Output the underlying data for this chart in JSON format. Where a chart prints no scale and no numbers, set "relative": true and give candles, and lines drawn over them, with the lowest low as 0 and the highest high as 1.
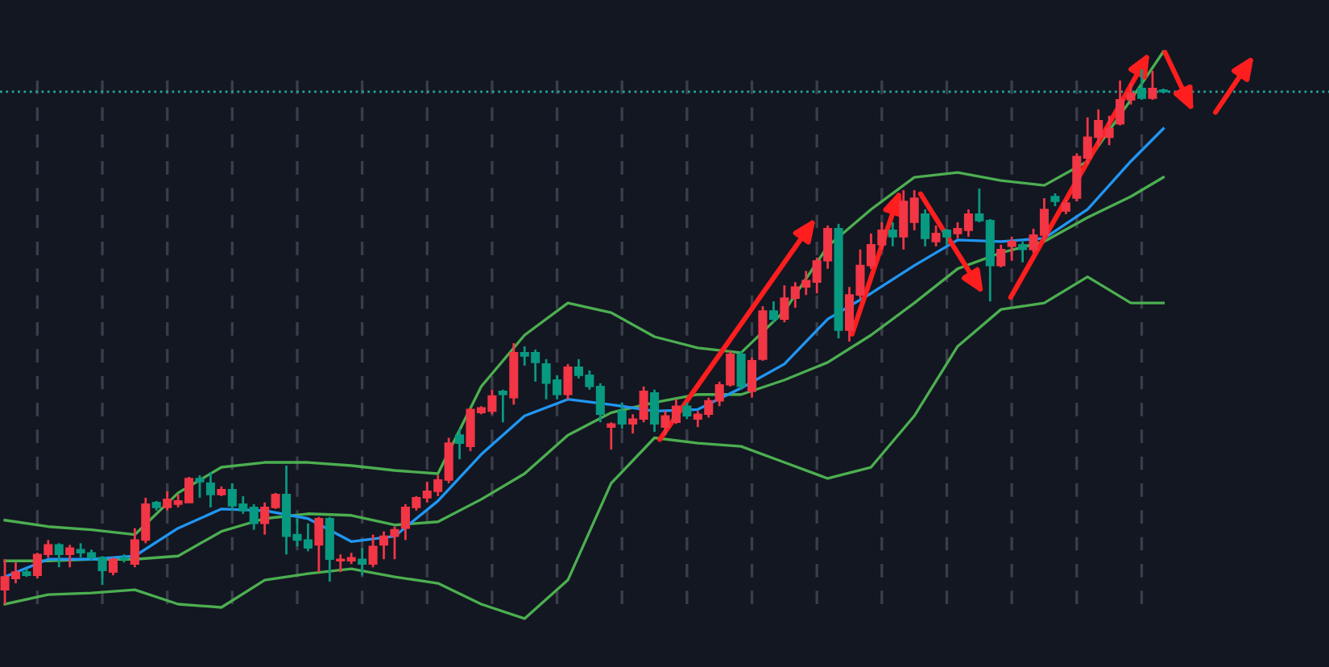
{
  "chart_data": {
    "type": "candlestick",
    "relative": true,
    "grid": "x",
    "categories": [
      null,
      null,
      null,
      null,
      null,
      null,
      null,
      null,
      null,
      null,
      null,
      null,
      null,
      null,
      null,
      null,
      null,
      null,
      null,
      null,
      null,
      null,
      null,
      null,
      null,
      null,
      null,
      null,
      null,
      null,
      null,
      null,
      null,
      null,
      null,
      null,
      null,
      null,
      null,
      null,
      null,
      null,
      null,
      null,
      null,
      null,
      null,
      null,
      null,
      null,
      null,
      null,
      null,
      null,
      null,
      null,
      null,
      null,
      null,
      null,
      null,
      null,
      null,
      null,
      null,
      null,
      null,
      null,
      null,
      null,
      null,
      null,
      null,
      null,
      null,
      null,
      null,
      null,
      null,
      null,
      null,
      null,
      null,
      null,
      null,
      null,
      null,
      null,
      null,
      null,
      null,
      null,
      null,
      null,
      null,
      null,
      null,
      null,
      null,
      null,
      null,
      null,
      null,
      null,
      null,
      null,
      null,
      null
    ],
    "ohlc": [
      [
        0.027,
        0.084,
        0,
        0.051
      ],
      [
        0.048,
        0.078,
        0.039,
        0.06
      ],
      [
        0.06,
        0.066,
        0.051,
        0.054
      ],
      [
        0.054,
        0.096,
        0.048,
        0.093
      ],
      [
        0.093,
        0.12,
        0.087,
        0.111
      ],
      [
        0.111,
        0.114,
        0.069,
        0.093
      ],
      [
        0.093,
        0.111,
        0.069,
        0.105
      ],
      [
        0.102,
        0.114,
        0.087,
        0.096
      ],
      [
        0.096,
        0.102,
        0.081,
        0.087
      ],
      [
        0.087,
        0.09,
        0.036,
        0.063
      ],
      [
        0.06,
        0.087,
        0.054,
        0.084
      ],
      [
        0.087,
        0.093,
        0.078,
        0.084
      ],
      [
        0.075,
        0.142,
        0.069,
        0.12
      ],
      [
        0.12,
        0.199,
        0.114,
        0.187
      ],
      [
        0.19,
        0.193,
        0.175,
        0.181
      ],
      [
        0.181,
        0.211,
        0.175,
        0.196
      ],
      [
        0.187,
        0.205,
        0.181,
        0.193
      ],
      [
        0.19,
        0.238,
        0.19,
        0.235
      ],
      [
        0.235,
        0.241,
        0.199,
        0.229
      ],
      [
        0.226,
        0.247,
        0.181,
        0.205
      ],
      [
        0.205,
        0.22,
        0.202,
        0.214
      ],
      [
        0.214,
        0.226,
        0.175,
        0.184
      ],
      [
        0.187,
        0.202,
        0.169,
        0.175
      ],
      [
        0.181,
        0.187,
        0.139,
        0.151
      ],
      [
        0.151,
        0.19,
        0.13,
        0.181
      ],
      [
        0.181,
        0.208,
        0.178,
        0.205
      ],
      [
        0.205,
        0.259,
        0.093,
        0.127
      ],
      [
        0.13,
        0.16,
        0.108,
        0.12
      ],
      [
        0.12,
        0.151,
        0.099,
        0.105
      ],
      [
        0.111,
        0.163,
        0.06,
        0.16
      ],
      [
        0.16,
        0.163,
        0.042,
        0.084
      ],
      [
        0.081,
        0.093,
        0.06,
        0.084
      ],
      [
        0.081,
        0.096,
        0.075,
        0.087
      ],
      [
        0.084,
        0.105,
        0.054,
        0.075
      ],
      [
        0.075,
        0.13,
        0.069,
        0.108
      ],
      [
        0.111,
        0.136,
        0.084,
        0.127
      ],
      [
        0.127,
        0.145,
        0.084,
        0.139
      ],
      [
        0.142,
        0.187,
        0.12,
        0.181
      ],
      [
        0.181,
        0.202,
        0.175,
        0.199
      ],
      [
        0.199,
        0.229,
        0.19,
        0.211
      ],
      [
        0.211,
        0.241,
        0.202,
        0.232
      ],
      [
        0.232,
        0.311,
        0.226,
        0.301
      ],
      [
        0.316,
        0.328,
        0.271,
        0.301
      ],
      [
        0.295,
        0.367,
        0.286,
        0.364
      ],
      [
        0.358,
        0.37,
        0.355,
        0.367
      ],
      [
        0.361,
        0.401,
        0.355,
        0.389
      ],
      [
        0.398,
        0.401,
        0.34,
        0.392
      ],
      [
        0.386,
        0.488,
        0.373,
        0.47
      ],
      [
        0.47,
        0.482,
        0.446,
        0.464
      ],
      [
        0.47,
        0.476,
        0.416,
        0.452
      ],
      [
        0.449,
        0.458,
        0.383,
        0.413
      ],
      [
        0.419,
        0.428,
        0.383,
        0.392
      ],
      [
        0.392,
        0.449,
        0.383,
        0.443
      ],
      [
        0.443,
        0.458,
        0.422,
        0.428
      ],
      [
        0.428,
        0.437,
        0.401,
        0.407
      ],
      [
        0.407,
        0.413,
        0.34,
        0.355
      ],
      [
        0.331,
        0.34,
        0.289,
        0.337
      ],
      [
        0.361,
        0.377,
        0.328,
        0.337
      ],
      [
        0.337,
        0.355,
        0.319,
        0.346
      ],
      [
        0.346,
        0.407,
        0.34,
        0.398
      ],
      [
        0.395,
        0.401,
        0.322,
        0.337
      ],
      [
        0.331,
        0.361,
        0.316,
        0.352
      ],
      [
        0.34,
        0.383,
        0.337,
        0.37
      ],
      [
        0.37,
        0.377,
        0.346,
        0.352
      ],
      [
        0.346,
        0.361,
        0.331,
        0.355
      ],
      [
        0.355,
        0.386,
        0.349,
        0.38
      ],
      [
        0.38,
        0.416,
        0.37,
        0.41
      ],
      [
        0.41,
        0.473,
        0.407,
        0.467
      ],
      [
        0.467,
        0.473,
        0.401,
        0.407
      ],
      [
        0.398,
        0.461,
        0.386,
        0.455
      ],
      [
        0.458,
        0.557,
        0.455,
        0.548
      ],
      [
        0.548,
        0.566,
        0.527,
        0.533
      ],
      [
        0.533,
        0.596,
        0.527,
        0.572
      ],
      [
        0.572,
        0.602,
        0.554,
        0.593
      ],
      [
        0.593,
        0.623,
        0.578,
        0.605
      ],
      [
        0.602,
        0.648,
        0.581,
        0.642
      ],
      [
        0.642,
        0.708,
        0.627,
        0.702
      ],
      [
        0.702,
        0.711,
        0.497,
        0.512
      ],
      [
        0.512,
        0.593,
        0.491,
        0.578
      ],
      [
        0.578,
        0.663,
        0.572,
        0.633
      ],
      [
        0.633,
        0.693,
        0.627,
        0.672
      ],
      [
        0.672,
        0.714,
        0.663,
        0.699
      ],
      [
        0.699,
        0.714,
        0.669,
        0.687
      ],
      [
        0.687,
        0.774,
        0.663,
        0.753
      ],
      [
        0.714,
        0.774,
        0.699,
        0.759
      ],
      [
        0.729,
        0.738,
        0.669,
        0.684
      ],
      [
        0.678,
        0.708,
        0.669,
        0.693
      ],
      [
        0.699,
        0.702,
        0.672,
        0.687
      ],
      [
        0.693,
        0.714,
        0.684,
        0.702
      ],
      [
        0.699,
        0.738,
        0.687,
        0.729
      ],
      [
        0.729,
        0.777,
        0.714,
        0.717
      ],
      [
        0.717,
        0.72,
        0.566,
        0.633
      ],
      [
        0.633,
        0.672,
        0.63,
        0.663
      ],
      [
        0.669,
        0.687,
        0.642,
        0.678
      ],
      [
        0.672,
        0.678,
        0.639,
        0.663
      ],
      [
        0.663,
        0.702,
        0.657,
        0.69
      ],
      [
        0.69,
        0.759,
        0.678,
        0.738
      ],
      [
        0.762,
        0.768,
        0.744,
        0.753
      ],
      [
        0.735,
        0.756,
        0.729,
        0.75
      ],
      [
        0.759,
        0.843,
        0.753,
        0.837
      ],
      [
        0.834,
        0.91,
        0.822,
        0.873
      ],
      [
        0.873,
        0.925,
        0.858,
        0.904
      ],
      [
        0.873,
        0.913,
        0.858,
        0.889
      ],
      [
        0.898,
        0.979,
        0.895,
        0.943
      ],
      [
        0.943,
        0.973,
        0.934,
        0.955
      ],
      [
        0.964,
        1,
        0.943,
        0.946
      ],
      [
        0.946,
        0.997,
        0.943,
        0.964
      ],
      [
        0.961,
        0.964,
        0.955,
        0.958
      ]
    ],
    "series": [
      {
        "type": "line",
        "color": "#4caf50",
        "values": [
          0.157,
          null,
          null,
          null,
          0.145,
          null,
          null,
          null,
          0.139,
          null,
          null,
          null,
          0.13,
          null,
          null,
          null,
          0.208,
          null,
          null,
          null,
          0.256,
          null,
          null,
          null,
          0.265,
          null,
          null,
          null,
          0.265,
          null,
          null,
          null,
          0.259,
          null,
          null,
          null,
          0.25,
          null,
          null,
          null,
          0.244,
          null,
          null,
          null,
          0.407,
          null,
          null,
          null,
          0.503,
          null,
          null,
          null,
          0.563,
          null,
          null,
          null,
          0.545,
          null,
          null,
          null,
          0.5,
          null,
          null,
          null,
          0.479,
          null,
          null,
          null,
          0.47,
          null,
          null,
          null,
          0.548,
          null,
          null,
          null,
          0.669,
          null,
          null,
          null,
          0.738,
          null,
          null,
          null,
          0.798,
          null,
          null,
          null,
          0.807,
          null,
          null,
          null,
          0.792,
          null,
          null,
          null,
          0.783,
          null,
          null,
          null,
          0.828,
          null,
          null,
          null,
          0.943,
          null,
          null,
          1.033
        ]
      },
      {
        "type": "line",
        "color": "#4caf50",
        "values": [
          0.081,
          null,
          null,
          null,
          0.081,
          null,
          null,
          null,
          0.084,
          null,
          null,
          null,
          0.084,
          null,
          null,
          null,
          0.09,
          null,
          null,
          null,
          0.136,
          null,
          null,
          null,
          0.16,
          null,
          null,
          null,
          0.169,
          null,
          null,
          null,
          0.166,
          null,
          null,
          null,
          0.148,
          null,
          null,
          null,
          0.154,
          null,
          null,
          null,
          0.196,
          null,
          null,
          null,
          0.244,
          null,
          null,
          null,
          0.316,
          null,
          null,
          null,
          0.358,
          null,
          null,
          null,
          0.377,
          null,
          null,
          null,
          0.392,
          null,
          null,
          null,
          0.392,
          null,
          null,
          null,
          0.419,
          null,
          null,
          null,
          0.452,
          null,
          null,
          null,
          0.503,
          null,
          null,
          null,
          0.563,
          null,
          null,
          null,
          0.627,
          null,
          null,
          null,
          0.657,
          null,
          null,
          null,
          0.678,
          null,
          null,
          null,
          0.723,
          null,
          null,
          null,
          0.762,
          null,
          null,
          0.798
        ]
      },
      {
        "type": "line",
        "color": "#2196f3",
        "values": [
          0.051,
          null,
          null,
          null,
          0.084,
          null,
          null,
          null,
          0.084,
          null,
          null,
          null,
          0.09,
          null,
          null,
          null,
          0.142,
          null,
          null,
          null,
          0.178,
          null,
          null,
          null,
          0.175,
          null,
          null,
          null,
          0.16,
          null,
          null,
          null,
          0.117,
          null,
          null,
          null,
          0.127,
          null,
          null,
          null,
          0.193,
          null,
          null,
          null,
          0.28,
          null,
          null,
          null,
          0.352,
          null,
          null,
          null,
          0.383,
          null,
          null,
          null,
          0.373,
          null,
          null,
          null,
          0.361,
          null,
          null,
          null,
          0.364,
          null,
          null,
          null,
          0.404,
          null,
          null,
          null,
          0.449,
          null,
          null,
          null,
          0.533,
          null,
          null,
          null,
          0.581,
          null,
          null,
          null,
          0.633,
          null,
          null,
          null,
          0.681,
          null,
          null,
          null,
          0.678,
          null,
          null,
          null,
          0.684,
          null,
          null,
          null,
          0.738,
          null,
          null,
          null,
          0.828,
          null,
          null,
          0.889
        ]
      },
      {
        "type": "line",
        "color": "#4caf50",
        "values": [
          0,
          null,
          null,
          null,
          0.018,
          null,
          null,
          null,
          0.021,
          null,
          null,
          null,
          0.027,
          null,
          null,
          null,
          0,
          null,
          null,
          null,
          -0.006,
          null,
          null,
          null,
          0.045,
          null,
          null,
          null,
          0.057,
          null,
          null,
          null,
          0.066,
          null,
          null,
          null,
          0.051,
          null,
          null,
          null,
          0.039,
          null,
          null,
          null,
          0,
          null,
          null,
          null,
          -0.027,
          null,
          null,
          null,
          0.045,
          null,
          null,
          null,
          0.226,
          null,
          null,
          null,
          0.311,
          null,
          null,
          null,
          0.301,
          null,
          null,
          null,
          0.295,
          null,
          null,
          null,
          0.265,
          null,
          null,
          null,
          0.235,
          null,
          null,
          null,
          0.256,
          null,
          null,
          null,
          0.352,
          null,
          null,
          null,
          0.482,
          null,
          null,
          null,
          0.551,
          null,
          null,
          null,
          0.563,
          null,
          null,
          null,
          0.612,
          null,
          null,
          null,
          0.563,
          null,
          null,
          0.563
        ]
      }
    ],
    "ref_lines": [
      {
        "axis": "y",
        "value": 0.958,
        "color": "#26a69a",
        "line_style": "dotted"
      }
    ]
  }
}
